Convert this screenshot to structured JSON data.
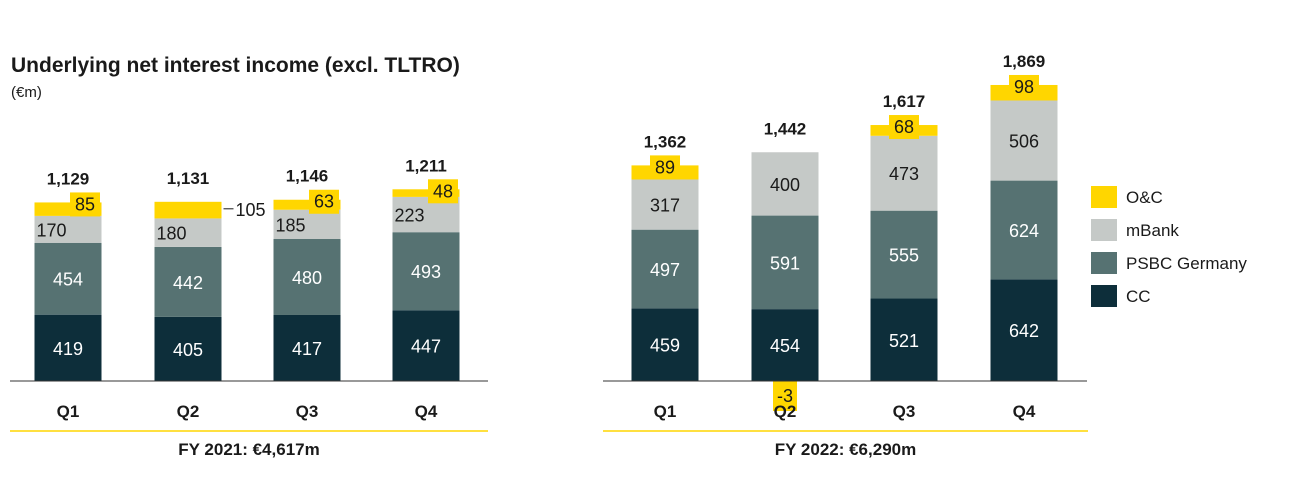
{
  "chart_data": {
    "type": "bar",
    "stacked": true,
    "title": "Underlying net interest income (excl. TLTRO)",
    "subtitle": "(€m)",
    "categories": [
      "Q1",
      "Q2",
      "Q3",
      "Q4",
      "Q1",
      "Q2",
      "Q3",
      "Q4"
    ],
    "groups": [
      {
        "label": "FY 2021:  €4,617m",
        "categories": [
          "Q1",
          "Q2",
          "Q3",
          "Q4"
        ]
      },
      {
        "label": "FY 2022:  €6,290m",
        "categories": [
          "Q1",
          "Q2",
          "Q3",
          "Q4"
        ]
      }
    ],
    "series": [
      {
        "name": "CC",
        "color": "#0d2e3a",
        "values": [
          419,
          405,
          417,
          447,
          459,
          454,
          521,
          642
        ]
      },
      {
        "name": "PSBC Germany",
        "color": "#567272",
        "values": [
          454,
          442,
          480,
          493,
          497,
          591,
          555,
          624
        ]
      },
      {
        "name": "mBank",
        "color": "#c5c9c7",
        "values": [
          170,
          180,
          185,
          223,
          317,
          400,
          473,
          506
        ]
      },
      {
        "name": "O&C",
        "color": "#ffd600",
        "values": [
          85,
          105,
          63,
          48,
          89,
          -3,
          68,
          98
        ]
      }
    ],
    "totals": [
      "1,129",
      "1,131",
      "1,146",
      "1,211",
      "1,362",
      "1,442",
      "1,617",
      "1,869"
    ],
    "legend_position": "right",
    "grid": false
  }
}
